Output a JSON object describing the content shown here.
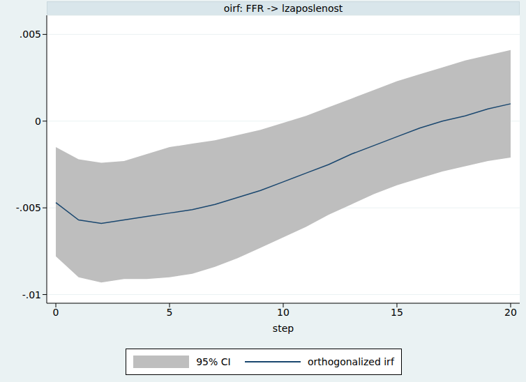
{
  "chart_data": {
    "type": "line",
    "title": "oirf: FFR -> lzaposlenost",
    "x_label": "step",
    "x": [
      0,
      1,
      2,
      3,
      4,
      5,
      6,
      7,
      8,
      9,
      10,
      11,
      12,
      13,
      14,
      15,
      16,
      17,
      18,
      19,
      20
    ],
    "series": [
      {
        "name": "95% CI",
        "type": "area",
        "color": "#bebebe",
        "lower": [
          -0.0078,
          -0.009,
          -0.0093,
          -0.0091,
          -0.0091,
          -0.009,
          -0.0088,
          -0.0084,
          -0.0079,
          -0.0073,
          -0.0067,
          -0.0061,
          -0.0054,
          -0.0048,
          -0.0042,
          -0.0037,
          -0.0033,
          -0.0029,
          -0.0026,
          -0.0023,
          -0.0021
        ],
        "upper": [
          -0.0015,
          -0.0022,
          -0.0024,
          -0.0023,
          -0.0019,
          -0.0015,
          -0.0013,
          -0.0011,
          -0.0008,
          -0.0005,
          -0.0001,
          0.0003,
          0.0008,
          0.0013,
          0.0018,
          0.0023,
          0.0027,
          0.0031,
          0.0035,
          0.0038,
          0.0041
        ]
      },
      {
        "name": "orthogonalized irf",
        "type": "line",
        "color": "#1a476f",
        "values": [
          -0.0047,
          -0.0057,
          -0.0059,
          -0.0057,
          -0.0055,
          -0.0053,
          -0.0051,
          -0.0048,
          -0.0044,
          -0.004,
          -0.0035,
          -0.003,
          -0.0025,
          -0.0019,
          -0.0014,
          -0.0009,
          -0.0004,
          0.0,
          0.0003,
          0.0007,
          0.001
        ]
      }
    ],
    "xlim": [
      -0.4,
      20.4
    ],
    "xticks": [
      0,
      5,
      10,
      15,
      20
    ],
    "ylim": [
      -0.0105,
      0.0061
    ],
    "yticks": [
      {
        "value": -0.01,
        "label": "-.01"
      },
      {
        "value": -0.005,
        "label": "-.005"
      },
      0,
      {
        "value": 0.005,
        "label": ".005"
      }
    ],
    "grid": true,
    "legend": "bottom"
  }
}
